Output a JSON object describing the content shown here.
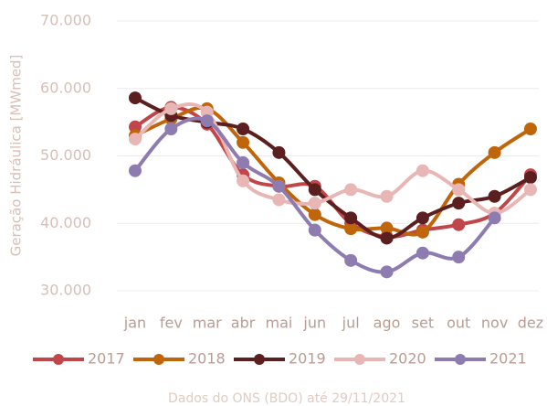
{
  "chart_data": {
    "type": "line",
    "y_label": "Geração Hidráulica [MWmed]",
    "footer": "Dados do ONS (BDO) até 29/11/2021",
    "categories": [
      "jan",
      "fev",
      "mar",
      "abr",
      "mai",
      "jun",
      "jul",
      "ago",
      "set",
      "out",
      "nov",
      "dez"
    ],
    "series": [
      {
        "name": "2017",
        "color": "#c0464a",
        "values": [
          54300,
          57200,
          54700,
          47200,
          45500,
          45500,
          40000,
          38000,
          39000,
          39800,
          41500,
          47200
        ]
      },
      {
        "name": "2018",
        "color": "#c0650a",
        "values": [
          53000,
          55500,
          57000,
          52000,
          46000,
          41300,
          39200,
          39300,
          38700,
          45800,
          50500,
          54000
        ]
      },
      {
        "name": "2019",
        "color": "#5c1f1f",
        "values": [
          58600,
          56000,
          55000,
          54000,
          50500,
          45000,
          40800,
          37800,
          40800,
          43000,
          44000,
          46800
        ]
      },
      {
        "name": "2020",
        "color": "#e8b7b5",
        "values": [
          52500,
          57000,
          56500,
          46300,
          43500,
          43000,
          45000,
          44000,
          47800,
          45000,
          41500,
          45000
        ]
      },
      {
        "name": "2021",
        "color": "#8e7bb0",
        "values": [
          47800,
          54000,
          55200,
          49000,
          45500,
          39000,
          34500,
          32800,
          35600,
          35000,
          40800,
          null
        ]
      }
    ],
    "ylim": [
      30000,
      70000
    ],
    "yticks": [
      {
        "value": 30000,
        "label": "30.000"
      },
      {
        "value": 40000,
        "label": "40.000"
      },
      {
        "value": 50000,
        "label": "50.000"
      },
      {
        "value": 60000,
        "label": "60.000"
      },
      {
        "value": 70000,
        "label": "70.000"
      }
    ],
    "grid": true,
    "legend": "bottom"
  }
}
